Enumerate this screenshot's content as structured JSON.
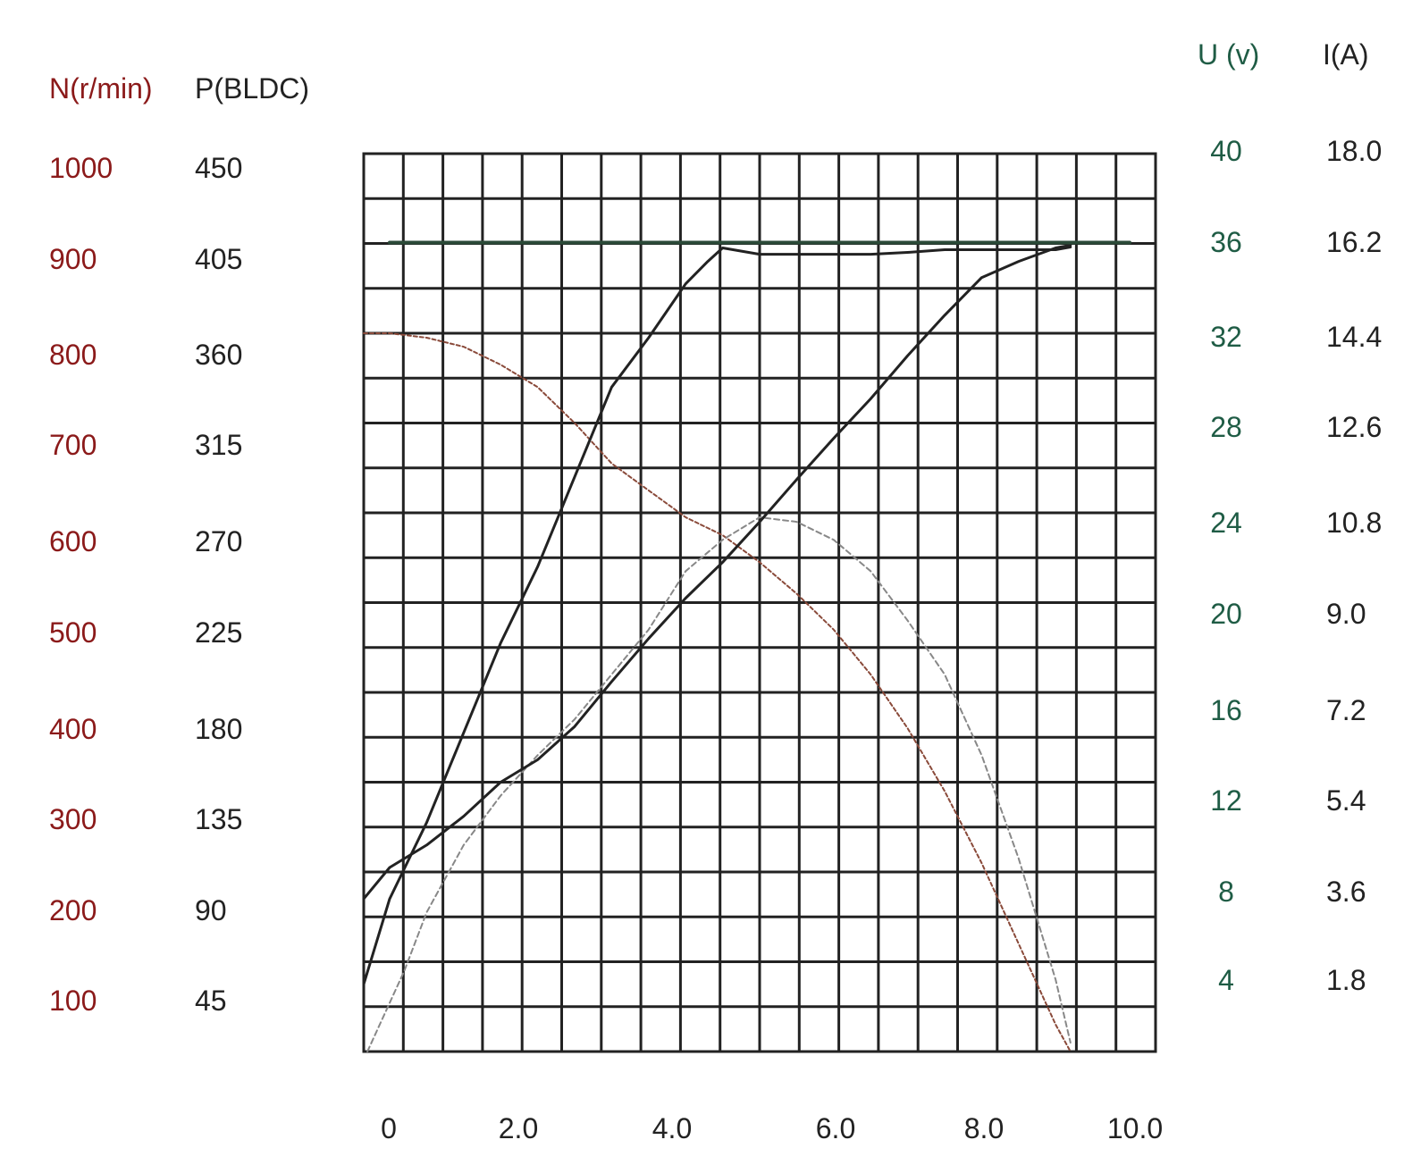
{
  "chart_data": {
    "type": "line",
    "axis_headers": {
      "left_speed": "N(r/min)",
      "left_power": "P(BLDC)",
      "right_voltage": "U (v)",
      "right_current": "I(A)"
    },
    "x_ticks": [
      "0",
      "2.0",
      "4.0",
      "6.0",
      "8.0",
      "10.0"
    ],
    "left_speed_ticks": [
      "1000",
      "900",
      "800",
      "700",
      "600",
      "500",
      "400",
      "300",
      "200",
      "100"
    ],
    "left_power_ticks": [
      "450",
      "405",
      "360",
      "315",
      "270",
      "225",
      "180",
      "135",
      "90",
      "45"
    ],
    "right_voltage_ticks": [
      "40",
      "36",
      "32",
      "28",
      "24",
      "20",
      "16",
      "12",
      "8",
      "4"
    ],
    "right_current_ticks": [
      "18.0",
      "16.2",
      "14.4",
      "12.6",
      "10.8",
      "9.0",
      "7.2",
      "5.4",
      "3.6",
      "1.8"
    ],
    "xlim": [
      -0.35,
      10.35
    ],
    "left_speed_lim": [
      0,
      1000
    ],
    "grid": true,
    "colors": {
      "speed_axis": "#8b1a1a",
      "voltage_axis": "#1f5c45",
      "ink": "#222222",
      "speed_curve": "#8a4a3a",
      "efficiency_curve": "#888888",
      "voltage_curve": "#2b4a38"
    },
    "series": [
      {
        "x": [
          -0.35,
          0.0,
          0.5,
          1.0,
          1.5,
          2.0,
          2.5,
          3.0,
          3.5,
          4.0,
          4.5,
          5.0,
          5.5,
          6.0,
          6.5,
          7.0,
          7.5,
          8.0,
          8.5,
          9.0,
          9.2
        ],
        "values": [
          800,
          800,
          795,
          785,
          765,
          740,
          700,
          655,
          625,
          595,
          575,
          545,
          510,
          470,
          420,
          360,
          290,
          210,
          120,
          30,
          0
        ]
      },
      {
        "x": [
          -0.3,
          0.2,
          0.5,
          1.0,
          1.5,
          2.0,
          2.5,
          3.0,
          3.5,
          4.0,
          4.5,
          5.0,
          5.5,
          6.0,
          6.5,
          7.0,
          7.5,
          8.0,
          8.5,
          9.0,
          9.2
        ],
        "values": [
          0,
          90,
          155,
          230,
          285,
          330,
          370,
          420,
          470,
          535,
          570,
          595,
          590,
          570,
          535,
          480,
          420,
          330,
          215,
          80,
          10
        ]
      },
      {
        "x": [
          -0.35,
          0.0,
          0.5,
          1.0,
          1.5,
          2.0,
          2.5,
          3.0,
          3.5,
          4.0,
          4.5,
          5.0,
          5.5,
          6.0,
          6.5,
          7.0,
          7.5,
          8.0,
          8.5,
          9.0,
          9.2
        ],
        "values": [
          170,
          205,
          230,
          262,
          300,
          325,
          362,
          412,
          460,
          505,
          545,
          590,
          637,
          683,
          727,
          775,
          820,
          862,
          880,
          895,
          898
        ]
      },
      {
        "x": [
          -0.35,
          0.0,
          0.5,
          1.0,
          1.5,
          2.0,
          2.5,
          3.0,
          3.5,
          4.0,
          4.3,
          4.5,
          5.0,
          5.5,
          6.0,
          6.5,
          7.0,
          7.5,
          8.0,
          8.5,
          9.0,
          9.2
        ],
        "values": [
          75,
          170,
          255,
          355,
          455,
          540,
          640,
          740,
          795,
          855,
          880,
          895,
          888,
          888,
          888,
          888,
          890,
          893,
          893,
          893,
          893,
          896
        ]
      },
      {
        "x": [
          0.0,
          1.0,
          2.0,
          3.0,
          4.0,
          4.5,
          5.0,
          6.0,
          7.0,
          8.0,
          9.0,
          10.0
        ],
        "values": [
          901,
          901,
          901,
          901,
          901,
          901,
          901,
          901,
          901,
          901,
          901,
          901
        ]
      }
    ]
  }
}
